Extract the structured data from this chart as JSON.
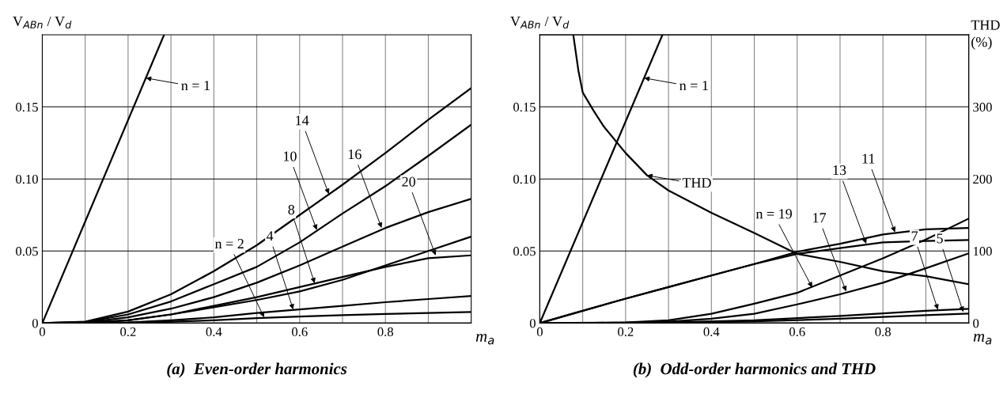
{
  "chart_data": [
    {
      "type": "line",
      "title": "(a)  Even-order harmonics",
      "xlabel": "m$_{a}$",
      "ylabel": "V$_{ABn}$ / V$_{d}$",
      "xlim": [
        0,
        1
      ],
      "ylim": [
        0,
        0.2
      ],
      "xticks": [
        0,
        {
          "value": 0.1,
          "label": null
        },
        0.2,
        {
          "value": 0.3,
          "label": null
        },
        0.4,
        {
          "value": 0.5,
          "label": null
        },
        0.6,
        {
          "value": 0.7,
          "label": null
        },
        0.8,
        {
          "value": 0.9,
          "label": null
        }
      ],
      "yticks": [
        0,
        0.05,
        {
          "value": 0.1,
          "label": "0.10"
        },
        0.15
      ],
      "grid": true,
      "legend": false,
      "marker": "none",
      "line_style": "solid",
      "series": [
        {
          "color": "#000000",
          "x": [
            0,
            0.284
          ],
          "values": [
            0,
            0.2
          ]
        },
        {
          "color": "#000000",
          "x": [
            0,
            0.1,
            0.2,
            0.3,
            0.4,
            0.5,
            0.6,
            0.7,
            0.8,
            0.9,
            1.0
          ],
          "values": [
            0,
            0.001,
            0.008,
            0.02,
            0.036,
            0.054,
            0.075,
            0.096,
            0.118,
            0.141,
            0.163
          ]
        },
        {
          "color": "#000000",
          "x": [
            0,
            0.1,
            0.2,
            0.3,
            0.4,
            0.5,
            0.6,
            0.7,
            0.8,
            0.9,
            1.0
          ],
          "values": [
            0,
            0.0008,
            0.006,
            0.015,
            0.027,
            0.039,
            0.056,
            0.076,
            0.095,
            0.116,
            0.1376
          ]
        },
        {
          "color": "#000000",
          "x": [
            0,
            0.1,
            0.2,
            0.3,
            0.4,
            0.5,
            0.6,
            0.7,
            0.8,
            0.9,
            1.0
          ],
          "values": [
            0,
            0.0005,
            0.004,
            0.01,
            0.018,
            0.028,
            0.04,
            0.053,
            0.066,
            0.077,
            0.0862
          ]
        },
        {
          "color": "#000000",
          "x": [
            0,
            0.1,
            0.2,
            0.3,
            0.4,
            0.5,
            0.6,
            0.7,
            0.8,
            0.9,
            1.0
          ],
          "values": [
            0,
            0.0003,
            0.002,
            0.006,
            0.011,
            0.016,
            0.022,
            0.03,
            0.04,
            0.05,
            0.06
          ]
        },
        {
          "color": "#000000",
          "x": [
            0,
            0.1,
            0.2,
            0.3,
            0.4,
            0.5,
            0.6,
            0.7,
            0.8,
            0.9,
            1.0
          ],
          "values": [
            0,
            0.0003,
            0.002,
            0.006,
            0.012,
            0.018,
            0.025,
            0.032,
            0.039,
            0.045,
            0.047
          ]
        },
        {
          "color": "#000000",
          "x": [
            0,
            0.1,
            0.2,
            0.3,
            0.4,
            0.5,
            0.6,
            0.7,
            0.8,
            0.9,
            1.0
          ],
          "values": [
            0,
            0.0001,
            0.0005,
            0.002,
            0.004,
            0.007,
            0.0095,
            0.012,
            0.0145,
            0.0167,
            0.0188
          ]
        },
        {
          "color": "#000000",
          "x": [
            0,
            0.1,
            0.2,
            0.3,
            0.4,
            0.5,
            0.6,
            0.7,
            0.8,
            0.9,
            1.0
          ],
          "values": [
            0,
            0,
            0.0003,
            0.001,
            0.002,
            0.0035,
            0.0045,
            0.0055,
            0.0063,
            0.007,
            0.0077
          ]
        }
      ],
      "annotations": [
        {
          "text": "n = 1",
          "x": 0.2414,
          "y": 0.17
        },
        {
          "text": "n = 2",
          "x": 0.517,
          "y": 0.004
        },
        {
          "text": "4",
          "x": 0.585,
          "y": 0.0094
        },
        {
          "text": "8",
          "x": 0.635,
          "y": 0.0276
        },
        {
          "text": "10",
          "x": 0.64,
          "y": 0.0646
        },
        {
          "text": "14",
          "x": 0.668,
          "y": 0.0895
        },
        {
          "text": "16",
          "x": 0.791,
          "y": 0.066
        },
        {
          "text": "20",
          "x": 0.917,
          "y": 0.047
        }
      ]
    },
    {
      "type": "line",
      "title": "(b)  Odd-order harmonics and THD",
      "xlabel": "m$_{a}$",
      "ylabel": "V$_{ABn}$ / V$_{d}$",
      "y2label": "THD\n(%)",
      "xlim": [
        0,
        1
      ],
      "ylim": [
        0,
        0.2
      ],
      "y2lim": [
        0,
        400
      ],
      "xticks": [
        0,
        {
          "value": 0.1,
          "label": null
        },
        0.2,
        {
          "value": 0.3,
          "label": null
        },
        0.4,
        {
          "value": 0.5,
          "label": null
        },
        0.6,
        {
          "value": 0.7,
          "label": null
        },
        0.8,
        {
          "value": 0.9,
          "label": null
        }
      ],
      "yticks": [
        0,
        0.05,
        {
          "value": 0.1,
          "label": "0.10"
        },
        0.15
      ],
      "y2ticks": [
        0,
        100,
        200,
        300
      ],
      "grid": true,
      "legend": false,
      "marker": "none",
      "line_style": "solid",
      "series": [
        {
          "color": "#000000",
          "x": [
            0,
            0.286
          ],
          "values": [
            0,
            0.2
          ]
        },
        {
          "color": "#000000",
          "axis": "y2",
          "x": [
            0.078,
            0.09,
            0.1,
            0.125,
            0.15,
            0.2,
            0.25,
            0.3,
            0.4,
            0.5,
            0.6,
            0.7,
            0.8,
            0.9,
            1.0
          ],
          "values": [
            400,
            350,
            320,
            295,
            272,
            236,
            205,
            184,
            153,
            125,
            96,
            85,
            72,
            65,
            54
          ]
        },
        {
          "color": "#000000",
          "x": [
            0,
            0.1,
            0.2,
            0.3,
            0.4,
            0.5,
            0.6,
            0.7,
            0.8,
            0.9,
            1.0
          ],
          "values": [
            0,
            0.0085,
            0.017,
            0.025,
            0.033,
            0.041,
            0.0495,
            0.055,
            0.0615,
            0.065,
            0.066
          ]
        },
        {
          "color": "#000000",
          "x": [
            0,
            0.1,
            0.2,
            0.3,
            0.4,
            0.5,
            0.6,
            0.7,
            0.8,
            0.9,
            1.0
          ],
          "values": [
            0,
            0.0085,
            0.017,
            0.025,
            0.033,
            0.041,
            0.048,
            0.052,
            0.056,
            0.057,
            0.0577
          ]
        },
        {
          "color": "#000000",
          "x": [
            0,
            0.1,
            0.2,
            0.3,
            0.4,
            0.5,
            0.6,
            0.7,
            0.8,
            0.9,
            1.0
          ],
          "values": [
            0,
            0,
            0.0005,
            0.002,
            0.0065,
            0.0135,
            0.021,
            0.033,
            0.045,
            0.058,
            0.0725
          ]
        },
        {
          "color": "#000000",
          "x": [
            0,
            0.1,
            0.2,
            0.3,
            0.4,
            0.5,
            0.6,
            0.7,
            0.8,
            0.9,
            1.0
          ],
          "values": [
            0,
            0,
            0.0002,
            0.001,
            0.003,
            0.0065,
            0.013,
            0.02,
            0.028,
            0.038,
            0.0484
          ]
        },
        {
          "color": "#000000",
          "x": [
            0,
            0.3,
            0.5,
            0.7,
            0.9,
            1.0
          ],
          "values": [
            0,
            0.0005,
            0.002,
            0.005,
            0.0085,
            0.0099
          ]
        },
        {
          "color": "#000000",
          "x": [
            0,
            0.3,
            0.5,
            0.7,
            0.9,
            1.0
          ],
          "values": [
            0,
            0.0003,
            0.0012,
            0.003,
            0.0055,
            0.0066
          ]
        }
      ],
      "annotations": [
        {
          "text": "n = 1",
          "x": 0.2431,
          "y": 0.17
        },
        {
          "text": "THD",
          "x": 0.25,
          "y": 0.1025
        },
        {
          "text": "n = 19",
          "x": 0.635,
          "y": 0.0247
        },
        {
          "text": "17",
          "x": 0.714,
          "y": 0.022
        },
        {
          "text": "13",
          "x": 0.761,
          "y": 0.055
        },
        {
          "text": "11",
          "x": 0.828,
          "y": 0.063
        },
        {
          "text": "7",
          "x": 0.928,
          "y": 0.0093
        },
        {
          "text": "5",
          "x": 0.987,
          "y": 0.0077
        }
      ]
    }
  ]
}
